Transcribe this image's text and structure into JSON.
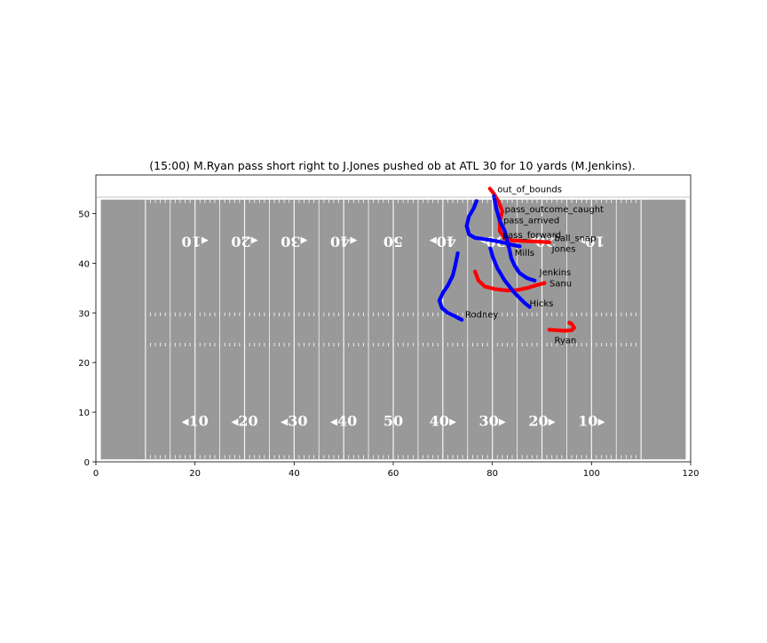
{
  "chart_data": {
    "type": "scatter",
    "title": "(15:00) M.Ryan pass short right to J.Jones pushed ob at ATL 30 for 10 yards (M.Jenkins).",
    "xlabel": "",
    "ylabel": "",
    "xlim": [
      0,
      120
    ],
    "ylim": [
      0,
      53.3
    ],
    "x_ticks": [
      0,
      20,
      40,
      60,
      80,
      100,
      120
    ],
    "y_ticks": [
      0,
      10,
      20,
      30,
      40,
      50
    ],
    "grid": false,
    "colors": {
      "field": "#999999",
      "lines": "#ffffff",
      "team_a": "#ff0000",
      "team_b": "#0000ff",
      "frame": "#000000"
    },
    "field_numbers_bottom": [
      "◂10",
      "◂20",
      "◂30",
      "◂40",
      "50",
      "40▸",
      "30▸",
      "20▸",
      "10▸"
    ],
    "field_numbers_top": [
      "◂10",
      "◂20",
      "◂30",
      "◂40",
      "50",
      "40▸",
      "30▸",
      "20▸",
      "10▸"
    ],
    "field_number_x": [
      20,
      30,
      40,
      50,
      60,
      70,
      80,
      90,
      100
    ],
    "series": [
      {
        "team": "red",
        "label": "Jones",
        "points": [
          [
            91.5,
            44.2
          ],
          [
            90,
            44.3
          ],
          [
            88,
            44.4
          ],
          [
            86,
            44.5
          ],
          [
            84,
            44.6
          ],
          [
            82.5,
            45.0
          ],
          [
            81.5,
            46.5
          ],
          [
            81.5,
            48.5
          ],
          [
            82.0,
            50.5
          ],
          [
            81.2,
            52.5
          ],
          [
            80.3,
            54.0
          ],
          [
            79.5,
            55.0
          ]
        ]
      },
      {
        "team": "red",
        "label": "Sanu",
        "points": [
          [
            90.5,
            36.0
          ],
          [
            89,
            35.6
          ],
          [
            87,
            35.0
          ],
          [
            85,
            34.6
          ],
          [
            83,
            34.5
          ],
          [
            80.5,
            34.8
          ],
          [
            78.5,
            35.3
          ],
          [
            77.2,
            36.5
          ],
          [
            76.5,
            38.3
          ]
        ]
      },
      {
        "team": "red",
        "label": "Ryan",
        "points": [
          [
            91.5,
            26.6
          ],
          [
            93,
            26.5
          ],
          [
            94.5,
            26.4
          ],
          [
            96,
            26.5
          ],
          [
            96.5,
            27.0
          ],
          [
            96,
            27.8
          ],
          [
            95.5,
            28.0
          ]
        ]
      },
      {
        "team": "blue",
        "label": "Mills",
        "points": [
          [
            85.5,
            43.4
          ],
          [
            84,
            43.7
          ],
          [
            82,
            44.2
          ],
          [
            80,
            44.6
          ],
          [
            78,
            44.9
          ],
          [
            76.5,
            45.1
          ],
          [
            75.3,
            45.8
          ],
          [
            74.8,
            47.5
          ],
          [
            75.3,
            49.5
          ],
          [
            76.2,
            51.0
          ],
          [
            76.8,
            52.5
          ]
        ]
      },
      {
        "team": "blue",
        "label": "Jenkins",
        "points": [
          [
            88.5,
            36.5
          ],
          [
            87,
            37.0
          ],
          [
            85.5,
            38.0
          ],
          [
            84.5,
            39.5
          ],
          [
            83.8,
            41.0
          ],
          [
            83.5,
            42.5
          ],
          [
            83.0,
            44.5
          ],
          [
            82.5,
            46.5
          ],
          [
            81.5,
            48.5
          ],
          [
            80.8,
            51.0
          ],
          [
            80.3,
            53.5
          ]
        ]
      },
      {
        "team": "blue",
        "label": "Hicks",
        "points": [
          [
            87.5,
            31.2
          ],
          [
            86.5,
            32.0
          ],
          [
            84.5,
            34.0
          ],
          [
            82.5,
            36.5
          ],
          [
            81.0,
            39.0
          ],
          [
            80.0,
            41.5
          ],
          [
            79.6,
            43.0
          ]
        ]
      },
      {
        "team": "blue",
        "label": "Rodney",
        "points": [
          [
            73.8,
            28.6
          ],
          [
            72.5,
            29.3
          ],
          [
            71.0,
            30.0
          ],
          [
            69.8,
            31.0
          ],
          [
            69.3,
            32.5
          ],
          [
            70.0,
            34.0
          ],
          [
            71.0,
            35.5
          ],
          [
            72.0,
            37.5
          ],
          [
            72.5,
            39.5
          ],
          [
            73.0,
            42.0
          ]
        ]
      }
    ],
    "annotations": [
      {
        "text": "out_of_bounds",
        "x": 81.0,
        "y": 55.0
      },
      {
        "text": "pass_outcome_caught",
        "x": 82.5,
        "y": 51.0
      },
      {
        "text": "pass_arrived",
        "x": 82.2,
        "y": 48.7
      },
      {
        "text": "pass_forward",
        "x": 82.0,
        "y": 45.8
      },
      {
        "text": "ball_snap",
        "x": 92.5,
        "y": 45.2
      },
      {
        "text": "Jones",
        "x": 92.0,
        "y": 43.0
      },
      {
        "text": "Mills",
        "x": 84.5,
        "y": 42.2
      },
      {
        "text": "Jenkins",
        "x": 89.5,
        "y": 38.3
      },
      {
        "text": "Sanu",
        "x": 91.5,
        "y": 36.0
      },
      {
        "text": "Hicks",
        "x": 87.5,
        "y": 32.0
      },
      {
        "text": "Rodney",
        "x": 74.5,
        "y": 29.8
      },
      {
        "text": "Ryan",
        "x": 92.5,
        "y": 24.6
      }
    ]
  }
}
